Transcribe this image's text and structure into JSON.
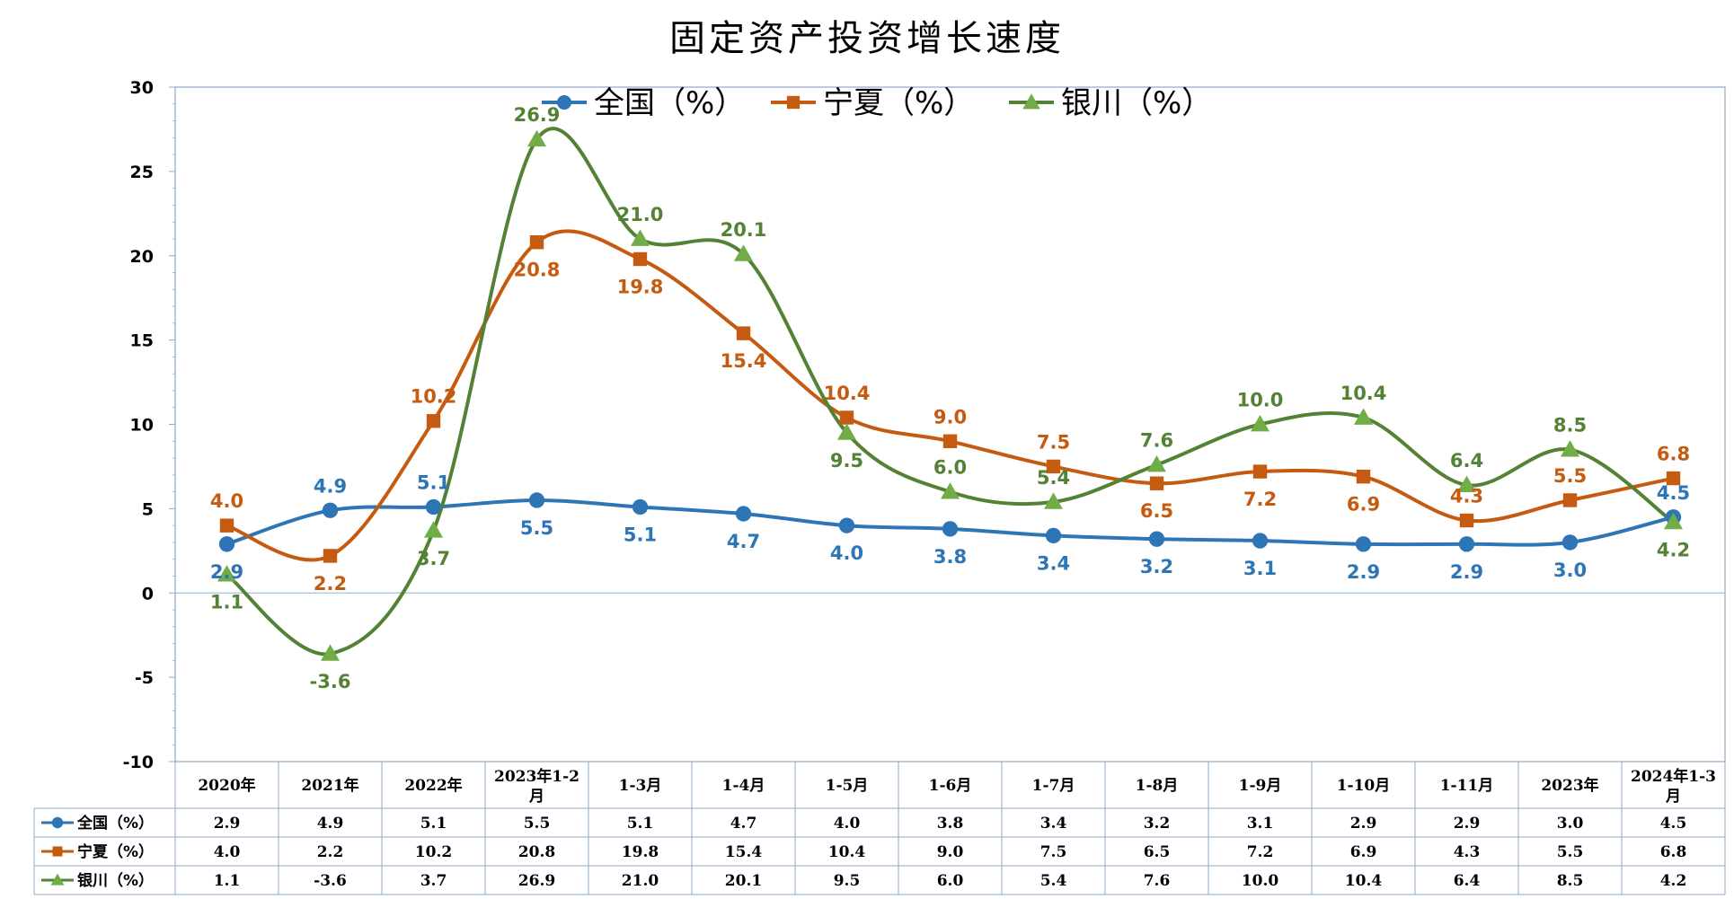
{
  "chart_data": {
    "type": "line",
    "title": "固定资产投资增长速度",
    "categories": [
      "2020年",
      "2021年",
      "2022年",
      "2023年1-2月",
      "1-3月",
      "1-4月",
      "1-5月",
      "1-6月",
      "1-7月",
      "1-8月",
      "1-9月",
      "1-10月",
      "1-11月",
      "2023年",
      "2024年1-3月"
    ],
    "category_lines": [
      [
        "2020年"
      ],
      [
        "2021年"
      ],
      [
        "2022年"
      ],
      [
        "2023年1-2",
        "月"
      ],
      [
        "1-3月"
      ],
      [
        "1-4月"
      ],
      [
        "1-5月"
      ],
      [
        "1-6月"
      ],
      [
        "1-7月"
      ],
      [
        "1-8月"
      ],
      [
        "1-9月"
      ],
      [
        "1-10月"
      ],
      [
        "1-11月"
      ],
      [
        "2023年"
      ],
      [
        "2024年1-3",
        "月"
      ]
    ],
    "series": [
      {
        "name": "全国（%）",
        "color": "#2E75B6",
        "marker": "circle",
        "values": [
          2.9,
          4.9,
          5.1,
          5.5,
          5.1,
          4.7,
          4.0,
          3.8,
          3.4,
          3.2,
          3.1,
          2.9,
          2.9,
          3.0,
          4.5
        ]
      },
      {
        "name": "宁夏（%）",
        "color": "#C55A11",
        "marker": "square",
        "values": [
          4.0,
          2.2,
          10.2,
          20.8,
          19.8,
          15.4,
          10.4,
          9.0,
          7.5,
          6.5,
          7.2,
          6.9,
          4.3,
          5.5,
          6.8
        ]
      },
      {
        "name": "银川（%）",
        "color": "#548235",
        "marker": "triangle",
        "values": [
          1.1,
          -3.6,
          3.7,
          26.9,
          21.0,
          20.1,
          9.5,
          6.0,
          5.4,
          7.6,
          10.0,
          10.4,
          6.4,
          8.5,
          4.2
        ]
      }
    ],
    "ylim": [
      -10,
      30
    ],
    "yticks": [
      -10,
      -5,
      0,
      5,
      10,
      15,
      20,
      25,
      30
    ],
    "ytick_labels": [
      "-10",
      "-5",
      "0",
      "5",
      "10",
      "15",
      "20",
      "25",
      "30"
    ],
    "smooth": true,
    "data_labels": true,
    "data_table": true,
    "legend_position": "top"
  }
}
